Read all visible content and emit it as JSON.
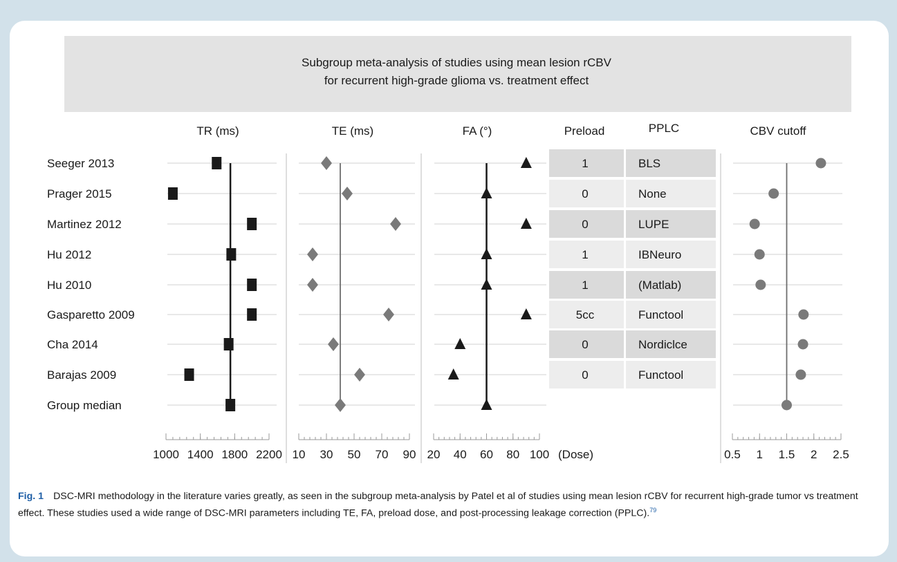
{
  "chart_data": {
    "type": "forest_plot",
    "title_lines": [
      "Subgroup meta-analysis of studies using mean lesion rCBV",
      "for recurrent high-grade glioma vs. treatment effect"
    ],
    "studies": [
      "Seeger 2013",
      "Prager 2015",
      "Martinez 2012",
      "Hu 2012",
      "Hu 2010",
      "Gasparetto 2009",
      "Cha 2014",
      "Barajas 2009",
      "Group median"
    ],
    "panels": [
      {
        "name": "TR (ms)",
        "marker": "square",
        "range": [
          1000,
          2200
        ],
        "ticks": [
          "1000",
          "1400",
          "1800",
          "2200"
        ],
        "tick_values": [
          1000,
          1400,
          1800,
          2200
        ],
        "median": 1750,
        "values": [
          1590,
          1080,
          2000,
          1760,
          2000,
          2000,
          1730,
          1270,
          1750
        ]
      },
      {
        "name": "TE (ms)",
        "marker": "diamond",
        "range": [
          10,
          90
        ],
        "ticks": [
          "10",
          "30",
          "50",
          "70",
          "90"
        ],
        "tick_values": [
          10,
          30,
          50,
          70,
          90
        ],
        "median": 40,
        "values": [
          30,
          45,
          80,
          20,
          20,
          75,
          35,
          54,
          40
        ]
      },
      {
        "name": "FA (°)",
        "marker": "triangle",
        "range": [
          20,
          100
        ],
        "ticks": [
          "20",
          "40",
          "60",
          "80",
          "100"
        ],
        "tick_values": [
          20,
          40,
          60,
          80,
          100
        ],
        "median": 60,
        "values": [
          90,
          60,
          90,
          60,
          60,
          90,
          40,
          35,
          60
        ]
      },
      {
        "name": "CBV cutoff",
        "marker": "circle",
        "range": [
          0.5,
          2.5
        ],
        "ticks": [
          "0.5",
          "1",
          "1.5",
          "2",
          "2.5"
        ],
        "tick_values": [
          0.5,
          1,
          1.5,
          2,
          2.5
        ],
        "median": 1.5,
        "values": [
          2.13,
          1.26,
          0.91,
          1.0,
          1.02,
          1.81,
          1.8,
          1.76,
          1.5
        ]
      }
    ],
    "table": {
      "headers": [
        "Preload",
        "PPLC"
      ],
      "preload": [
        "1",
        "0",
        "0",
        "1",
        "1",
        "5cc",
        "0",
        "0"
      ],
      "pplc": [
        "BLS",
        "None",
        "LUPE",
        "IBNeuro",
        "(Matlab)",
        "Functool",
        "Nordiclce",
        "Functool"
      ],
      "footer": "(Dose)"
    }
  },
  "caption": {
    "label": "Fig. 1",
    "text": "DSC-MRI methodology in the literature varies greatly, as seen in the subgroup meta-analysis by Patel et al of studies using mean lesion rCBV for recurrent high-grade tumor vs treatment effect. These studies used a wide range of DSC-MRI parameters including TE, FA, preload dose, and post-processing leakage correction (PPLC).",
    "ref": "79"
  },
  "colors": {
    "frame": "#d2e1ea",
    "title_box": "#e3e3e3",
    "table_dark": "#dadada",
    "table_light": "#ededed",
    "tr_marker": "#1a1a1a",
    "other_marker": "#7a7a7a",
    "caption_label": "#1f5fa6"
  }
}
